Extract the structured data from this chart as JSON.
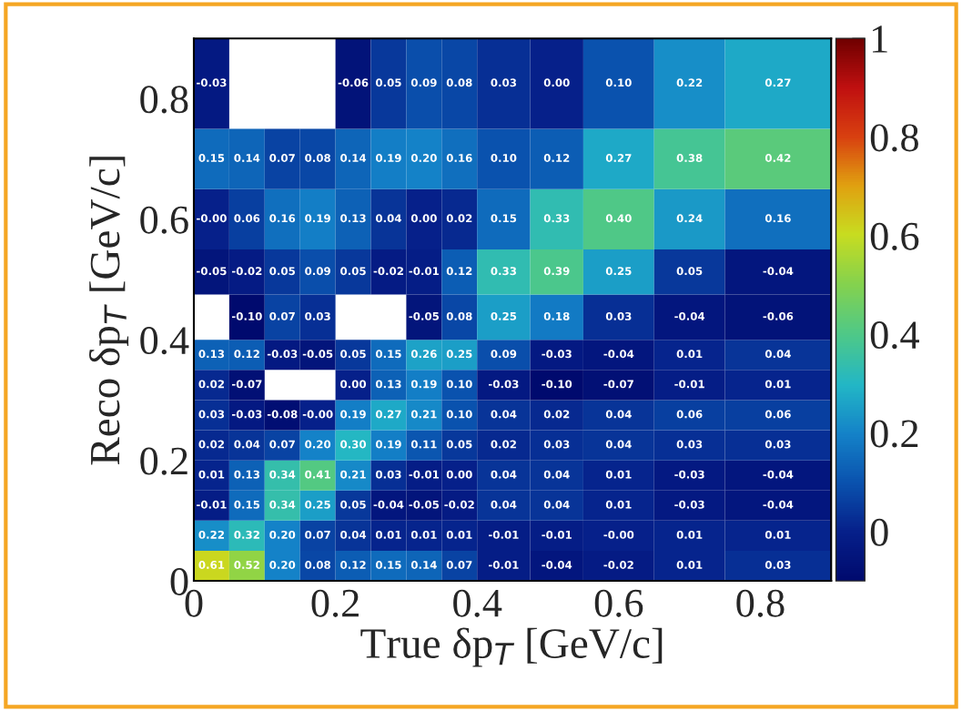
{
  "chart_data": {
    "type": "heatmap",
    "xlabel": "True δp$_{T}$ [GeV/c]",
    "ylabel": "Reco δp$_{T}$ [GeV/c]",
    "x": [
      0.025,
      0.075,
      0.125,
      0.175,
      0.225,
      0.275,
      0.325,
      0.375,
      0.4375,
      0.5125,
      0.6,
      0.7,
      0.825
    ],
    "y": [
      0.825,
      0.7,
      0.6,
      0.5125,
      0.4375,
      0.375,
      0.325,
      0.275,
      0.225,
      0.175,
      0.125,
      0.075,
      0.025
    ],
    "cells": [
      [
        -0.03,
        null,
        null,
        null,
        -0.06,
        0.05,
        0.09,
        0.08,
        0.03,
        0.0,
        0.1,
        0.22,
        0.27
      ],
      [
        0.15,
        0.14,
        0.07,
        0.08,
        0.14,
        0.19,
        0.2,
        0.16,
        0.1,
        0.12,
        0.27,
        0.38,
        0.42
      ],
      [
        0.0,
        0.06,
        0.16,
        0.19,
        0.13,
        0.04,
        0.0,
        0.02,
        0.15,
        0.33,
        0.4,
        0.24,
        0.16
      ],
      [
        -0.05,
        -0.02,
        0.05,
        0.09,
        0.05,
        -0.02,
        -0.01,
        0.12,
        0.33,
        0.39,
        0.25,
        0.05,
        -0.04
      ],
      [
        null,
        -0.1,
        0.07,
        0.03,
        null,
        null,
        -0.05,
        0.08,
        0.25,
        0.18,
        0.03,
        -0.04,
        -0.06
      ],
      [
        0.13,
        0.12,
        -0.03,
        -0.05,
        0.05,
        0.15,
        0.26,
        0.25,
        0.09,
        -0.03,
        -0.04,
        0.01,
        0.04
      ],
      [
        0.02,
        -0.07,
        null,
        null,
        0.0,
        0.13,
        0.19,
        0.1,
        -0.03,
        -0.1,
        -0.07,
        -0.01,
        0.01
      ],
      [
        0.03,
        -0.03,
        -0.08,
        0.0,
        0.19,
        0.27,
        0.21,
        0.1,
        0.04,
        0.02,
        0.04,
        0.06,
        0.06
      ],
      [
        0.02,
        0.04,
        0.07,
        0.2,
        0.3,
        0.19,
        0.11,
        0.05,
        0.02,
        0.03,
        0.04,
        0.03,
        0.03
      ],
      [
        0.01,
        0.13,
        0.34,
        0.41,
        0.21,
        0.03,
        -0.01,
        0.0,
        0.04,
        0.04,
        0.01,
        -0.03,
        -0.04
      ],
      [
        -0.01,
        0.15,
        0.34,
        0.25,
        0.05,
        -0.04,
        -0.05,
        -0.02,
        0.04,
        0.04,
        0.01,
        -0.03,
        -0.04
      ],
      [
        0.22,
        0.32,
        0.2,
        0.07,
        0.04,
        0.01,
        0.01,
        0.01,
        -0.01,
        -0.01,
        0.0,
        0.01,
        0.01
      ],
      [
        0.61,
        0.52,
        0.2,
        0.08,
        0.12,
        0.15,
        0.14,
        0.07,
        -0.01,
        -0.04,
        -0.02,
        0.01,
        0.03
      ]
    ],
    "cell_labels": [
      [
        "-0.03",
        null,
        null,
        null,
        "-0.06",
        "0.05",
        "0.09",
        "0.08",
        "0.03",
        "0.00",
        "0.10",
        "0.22",
        "0.27"
      ],
      [
        "0.15",
        "0.14",
        "0.07",
        "0.08",
        "0.14",
        "0.19",
        "0.20",
        "0.16",
        "0.10",
        "0.12",
        "0.27",
        "0.38",
        "0.42"
      ],
      [
        "-0.00",
        "0.06",
        "0.16",
        "0.19",
        "0.13",
        "0.04",
        "0.00",
        "0.02",
        "0.15",
        "0.33",
        "0.40",
        "0.24",
        "0.16"
      ],
      [
        "-0.05",
        "-0.02",
        "0.05",
        "0.09",
        "0.05",
        "-0.02",
        "-0.01",
        "0.12",
        "0.33",
        "0.39",
        "0.25",
        "0.05",
        "-0.04"
      ],
      [
        null,
        "-0.10",
        "0.07",
        "0.03",
        null,
        null,
        "-0.05",
        "0.08",
        "0.25",
        "0.18",
        "0.03",
        "-0.04",
        "-0.06"
      ],
      [
        "0.13",
        "0.12",
        "-0.03",
        "-0.05",
        "0.05",
        "0.15",
        "0.26",
        "0.25",
        "0.09",
        "-0.03",
        "-0.04",
        "0.01",
        "0.04"
      ],
      [
        "0.02",
        "-0.07",
        null,
        null,
        "0.00",
        "0.13",
        "0.19",
        "0.10",
        "-0.03",
        "-0.10",
        "-0.07",
        "-0.01",
        "0.01"
      ],
      [
        "0.03",
        "-0.03",
        "-0.08",
        "-0.00",
        "0.19",
        "0.27",
        "0.21",
        "0.10",
        "0.04",
        "0.02",
        "0.04",
        "0.06",
        "0.06"
      ],
      [
        "0.02",
        "0.04",
        "0.07",
        "0.20",
        "0.30",
        "0.19",
        "0.11",
        "0.05",
        "0.02",
        "0.03",
        "0.04",
        "0.03",
        "0.03"
      ],
      [
        "0.01",
        "0.13",
        "0.34",
        "0.41",
        "0.21",
        "0.03",
        "-0.01",
        "0.00",
        "0.04",
        "0.04",
        "0.01",
        "-0.03",
        "-0.04"
      ],
      [
        "-0.01",
        "0.15",
        "0.34",
        "0.25",
        "0.05",
        "-0.04",
        "-0.05",
        "-0.02",
        "0.04",
        "0.04",
        "0.01",
        "-0.03",
        "-0.04"
      ],
      [
        "0.22",
        "0.32",
        "0.20",
        "0.07",
        "0.04",
        "0.01",
        "0.01",
        "0.01",
        "-0.01",
        "-0.01",
        "-0.00",
        "0.01",
        "0.01"
      ],
      [
        "0.61",
        "0.52",
        "0.20",
        "0.08",
        "0.12",
        "0.15",
        "0.14",
        "0.07",
        "-0.01",
        "-0.04",
        "-0.02",
        "0.01",
        "0.03"
      ]
    ],
    "xlim": [
      0,
      0.9
    ],
    "ylim": [
      0,
      0.9
    ],
    "xticks": [
      0,
      0.2,
      0.4,
      0.6,
      0.8
    ],
    "yticks": [
      0,
      0.2,
      0.4,
      0.6,
      0.8
    ],
    "clim": [
      -0.1,
      1
    ],
    "cticks": [
      0,
      0.2,
      0.4,
      0.6,
      0.8,
      1
    ]
  }
}
